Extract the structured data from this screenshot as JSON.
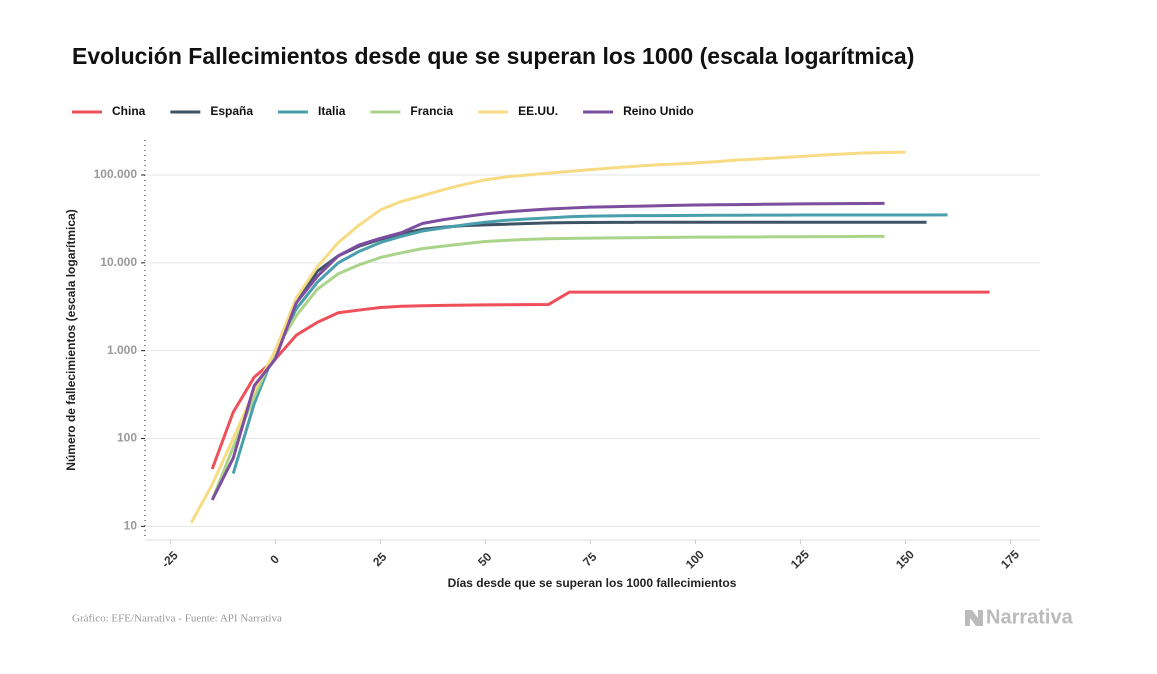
{
  "chart_data": {
    "type": "line",
    "title": "Evolución Fallecimientos desde que se superan los 1000 (escala logarítmica)",
    "x_label": "Días desde que se superan los 1000 fallecimientos",
    "y_label": "Número de fallecimientos (escala logarítmica)",
    "source": "Gráfico: EFE/Narrativa - Fuente: API Narrativa",
    "logo": "Narrativa",
    "log_scale_y": true,
    "grid": true,
    "legend": "top-left",
    "xlim": [
      -31,
      182
    ],
    "xticks": [
      -25,
      0,
      25,
      50,
      75,
      100,
      125,
      150,
      175
    ],
    "ylim": [
      7,
      250000
    ],
    "yticks": [
      10,
      100,
      {
        "value": 1000,
        "label": "1.000"
      },
      {
        "value": 10000,
        "label": "10.000"
      },
      {
        "value": 100000,
        "label": "100.000"
      }
    ],
    "x": [
      -20,
      -15,
      -10,
      -5,
      0,
      5,
      10,
      15,
      20,
      25,
      30,
      35,
      40,
      45,
      50,
      55,
      60,
      65,
      70,
      75,
      80,
      85,
      90,
      95,
      100,
      105,
      110,
      115,
      120,
      125,
      130,
      135,
      140,
      145,
      150,
      155,
      160,
      165,
      170
    ],
    "series": [
      {
        "name": "China",
        "color": "#ef4f58",
        "values": [
          null,
          45,
          200,
          500,
          800,
          1500,
          2100,
          2700,
          2900,
          3100,
          3200,
          3250,
          3280,
          3300,
          3320,
          3330,
          3340,
          3350,
          4632,
          4632,
          4632,
          4632,
          4632,
          4632,
          4632,
          4632,
          4632,
          4632,
          4632,
          4632,
          4632,
          4632,
          4632,
          4632,
          4632,
          4632,
          4632,
          4632,
          4632
        ]
      },
      {
        "name": "España",
        "color": "#3e5466",
        "values": [
          null,
          null,
          null,
          300,
          1000,
          3500,
          8000,
          12000,
          15500,
          18500,
          21500,
          24000,
          25500,
          26500,
          27000,
          27500,
          28000,
          28500,
          28700,
          28800,
          28900,
          28900,
          29000,
          29000,
          29000,
          29000,
          29000,
          29000,
          29000,
          29000,
          29000,
          29000,
          29000,
          29000,
          29000,
          29000,
          null,
          null,
          null
        ]
      },
      {
        "name": "Italia",
        "color": "#4a9fad",
        "values": [
          null,
          null,
          40,
          250,
          1000,
          3000,
          6000,
          10000,
          13500,
          17000,
          20000,
          23000,
          25000,
          27000,
          29000,
          30500,
          31500,
          32500,
          33500,
          34000,
          34200,
          34400,
          34500,
          34600,
          34700,
          34800,
          34800,
          34900,
          34900,
          35000,
          35000,
          35000,
          35000,
          35000,
          35000,
          35000,
          35100,
          null,
          null
        ]
      },
      {
        "name": "Francia",
        "color": "#aad48a",
        "values": [
          null,
          20,
          80,
          300,
          1000,
          2500,
          5000,
          7500,
          9500,
          11500,
          13000,
          14500,
          15500,
          16500,
          17500,
          18000,
          18500,
          18800,
          19000,
          19100,
          19200,
          19300,
          19400,
          19500,
          19600,
          19600,
          19700,
          19700,
          19800,
          19800,
          19900,
          19900,
          20000,
          20000,
          null,
          null,
          null,
          null,
          null
        ]
      },
      {
        "name": "EE.UU.",
        "color": "#f7dc84",
        "values": [
          11,
          30,
          100,
          350,
          1000,
          4000,
          9000,
          17000,
          27000,
          40000,
          50000,
          58000,
          68000,
          78000,
          88000,
          95000,
          100000,
          105000,
          110000,
          115000,
          120000,
          125000,
          130000,
          133000,
          137000,
          142000,
          148000,
          152000,
          157000,
          162000,
          168000,
          173000,
          178000,
          180000,
          182000,
          null,
          null,
          null,
          null
        ]
      },
      {
        "name": "Reino Unido",
        "color": "#7d4e9f",
        "values": [
          null,
          20,
          60,
          400,
          800,
          3500,
          7000,
          12000,
          16000,
          19000,
          22000,
          28000,
          31000,
          33500,
          36000,
          38000,
          39500,
          41000,
          42000,
          43000,
          43500,
          44000,
          44500,
          45000,
          45500,
          45800,
          46000,
          46300,
          46600,
          46800,
          47000,
          47200,
          47400,
          47500,
          null,
          null,
          null,
          null,
          null
        ]
      }
    ]
  }
}
